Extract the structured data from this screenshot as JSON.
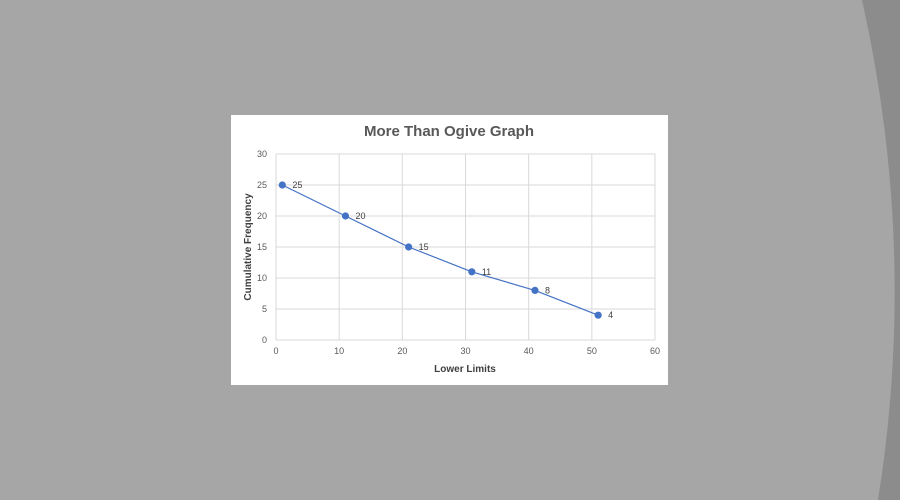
{
  "colors": {
    "slide_background": "#a6a6a6",
    "arc_background": "#8c8c8c",
    "card": "#ffffff",
    "gridline": "#d9d9d9",
    "series": "#4472c4"
  },
  "chart_data": {
    "type": "line",
    "title": "More Than Ogive Graph",
    "xlabel": "Lower Limits",
    "ylabel": "Cumulative Frequency",
    "xlim": [
      0,
      60
    ],
    "ylim": [
      0,
      30
    ],
    "x_ticks": [
      "0",
      "10",
      "20",
      "30",
      "40",
      "50",
      "60"
    ],
    "y_ticks": [
      "0",
      "5",
      "10",
      "15",
      "20",
      "25",
      "30"
    ],
    "grid": true,
    "legend": "none",
    "markers": true,
    "series": [
      {
        "x": [
          1,
          11,
          21,
          31,
          41,
          51
        ],
        "values": [
          25,
          20,
          15,
          11,
          8,
          4
        ],
        "labels": [
          "25",
          "20",
          "15",
          "11",
          "8",
          "4"
        ]
      }
    ]
  }
}
